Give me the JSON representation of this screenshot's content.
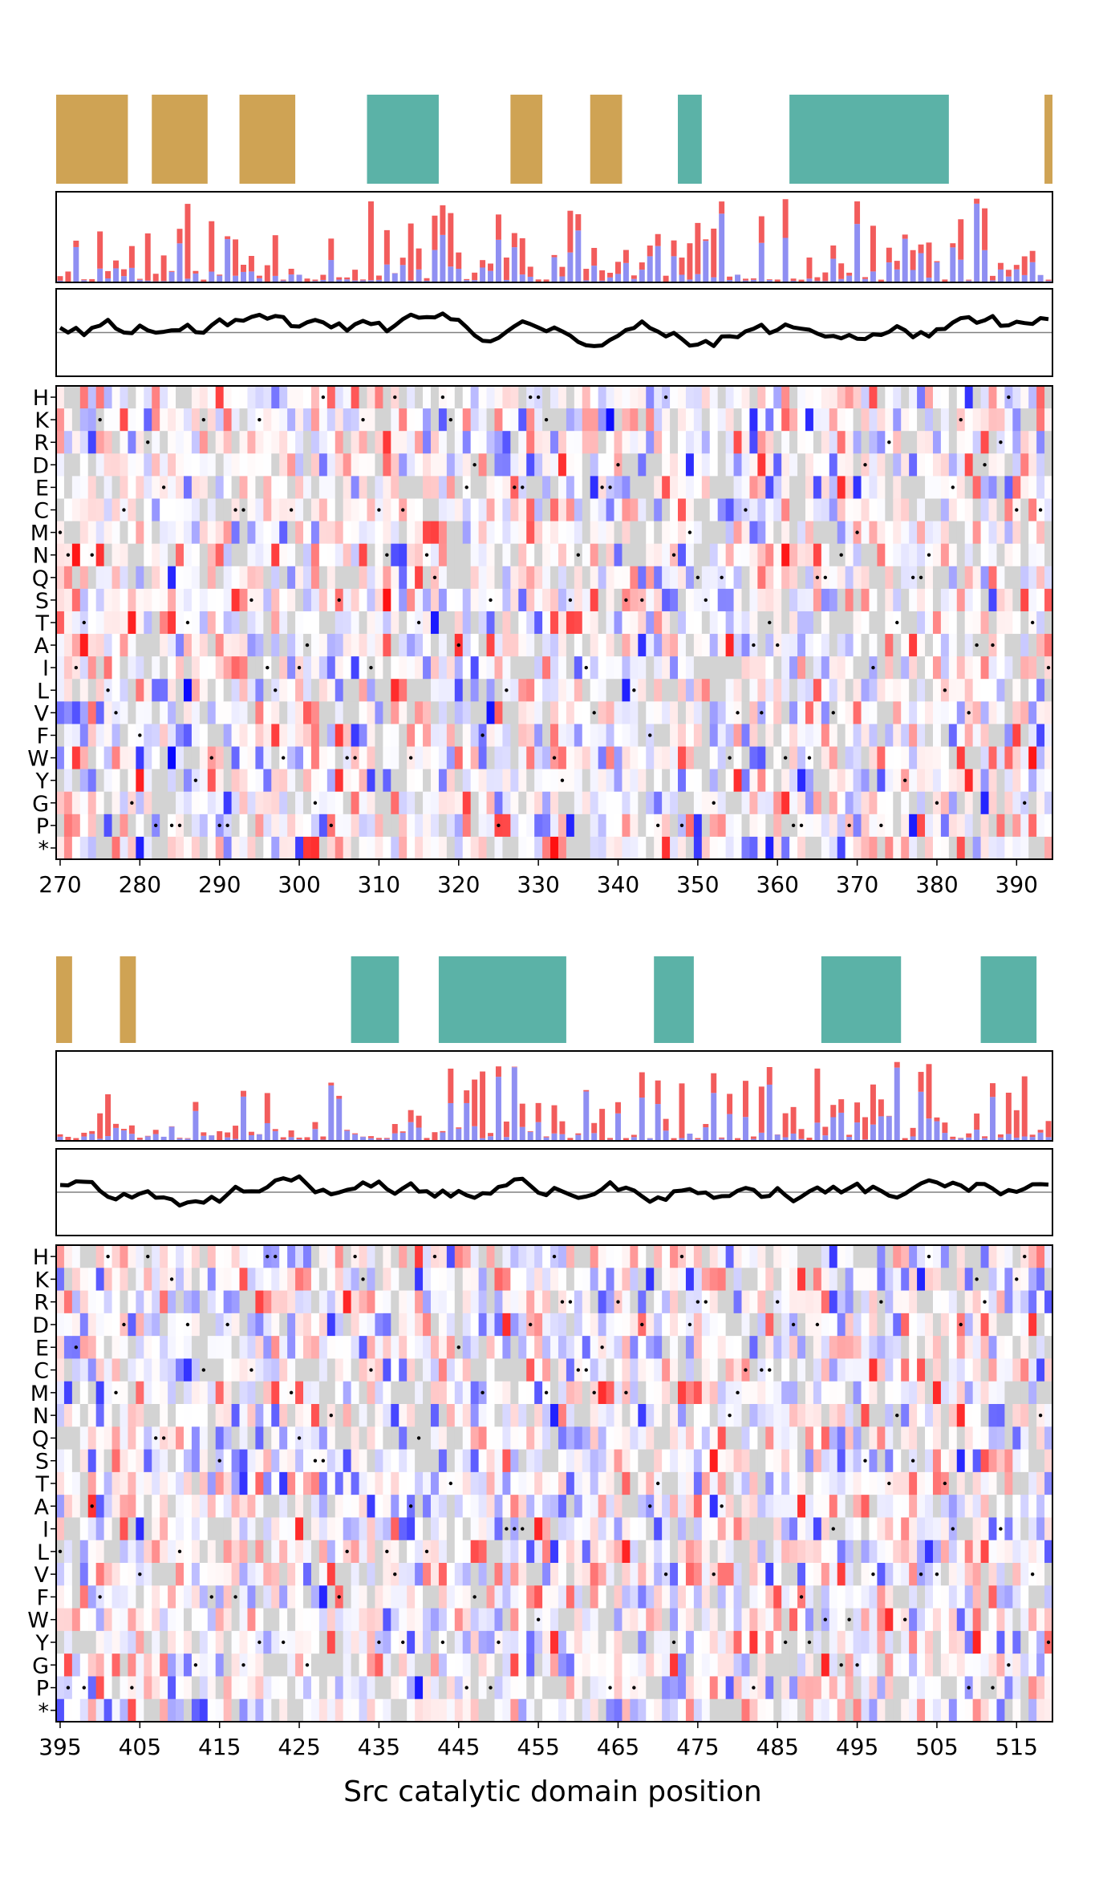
{
  "figure": {
    "xlabel": "Src catalytic domain position"
  },
  "colors": {
    "strand": "#cfa354",
    "helix": "#5bb2a7",
    "positive": "#f25c5c",
    "negative": "#8f8ff2",
    "heat_pos": "#ff0000",
    "heat_neg": "#0000ff",
    "heat_missing": "#d3d3d3",
    "line": "#000000",
    "refline": "#808080"
  },
  "chart_data": [
    {
      "type": "heatmap",
      "panel": "top",
      "xlim": [
        269.5,
        394.5
      ],
      "xticks": [
        270,
        280,
        290,
        300,
        310,
        320,
        330,
        340,
        350,
        360,
        370,
        380,
        390
      ],
      "row_labels": [
        "H",
        "K",
        "R",
        "D",
        "E",
        "C",
        "M",
        "N",
        "Q",
        "S",
        "T",
        "A",
        "I",
        "L",
        "V",
        "F",
        "W",
        "Y",
        "G",
        "P",
        "*"
      ],
      "clim": [
        -1,
        1
      ],
      "secondary_structure": [
        {
          "type": "strand",
          "start": 269.5,
          "end": 278.5
        },
        {
          "type": "strand",
          "start": 281.5,
          "end": 288.5
        },
        {
          "type": "strand",
          "start": 292.5,
          "end": 299.5
        },
        {
          "type": "helix",
          "start": 308.5,
          "end": 317.5
        },
        {
          "type": "strand",
          "start": 326.5,
          "end": 330.5
        },
        {
          "type": "strand",
          "start": 336.5,
          "end": 340.5
        },
        {
          "type": "helix",
          "start": 347.5,
          "end": 350.5
        },
        {
          "type": "helix",
          "start": 361.5,
          "end": 381.5
        },
        {
          "type": "strand",
          "start": 393.5,
          "end": 394.5
        }
      ],
      "bar_ylim": [
        0,
        1
      ],
      "line_ylim": [
        -1,
        1
      ],
      "line_ref": 0,
      "seed": 11
    },
    {
      "type": "heatmap",
      "panel": "bottom",
      "xlim": [
        394.5,
        519.5
      ],
      "xticks": [
        395,
        405,
        415,
        425,
        435,
        445,
        455,
        465,
        475,
        485,
        495,
        505,
        515
      ],
      "row_labels": [
        "H",
        "K",
        "R",
        "D",
        "E",
        "C",
        "M",
        "N",
        "Q",
        "S",
        "T",
        "A",
        "I",
        "L",
        "V",
        "F",
        "W",
        "Y",
        "G",
        "P",
        "*"
      ],
      "clim": [
        -1,
        1
      ],
      "secondary_structure": [
        {
          "type": "strand",
          "start": 394.5,
          "end": 396.5
        },
        {
          "type": "strand",
          "start": 402.5,
          "end": 404.5
        },
        {
          "type": "helix",
          "start": 431.5,
          "end": 437.5
        },
        {
          "type": "helix",
          "start": 442.5,
          "end": 458.5
        },
        {
          "type": "helix",
          "start": 469.5,
          "end": 474.5
        },
        {
          "type": "helix",
          "start": 490.5,
          "end": 500.5
        },
        {
          "type": "helix",
          "start": 510.5,
          "end": 517.5
        }
      ],
      "bar_ylim": [
        0,
        1
      ],
      "line_ylim": [
        -1,
        1
      ],
      "line_ref": 0,
      "seed": 37
    }
  ]
}
